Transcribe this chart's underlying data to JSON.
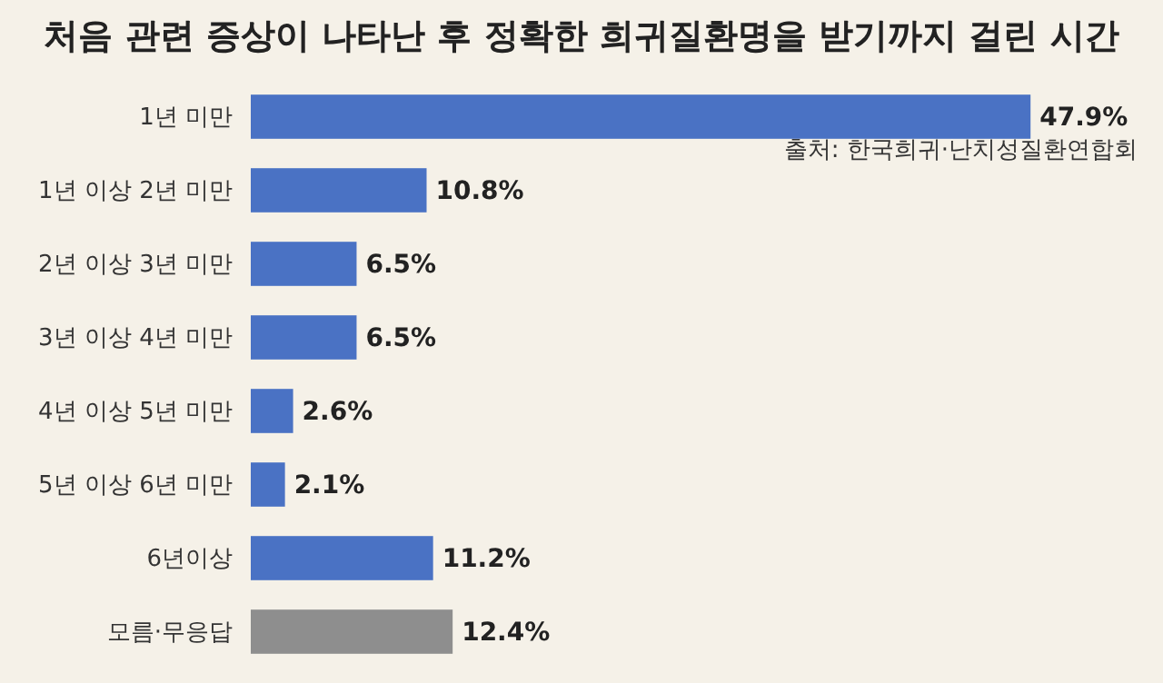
{
  "chart_data": {
    "type": "bar",
    "orientation": "horizontal",
    "title": "처음 관련 증상이 나타난 후 정확한 희귀질환명을 받기까지 걸린 시간",
    "categories": [
      "1년 미만",
      "1년 이상 2년 미만",
      "2년 이상 3년 미만",
      "3년 이상 4년 미만",
      "4년 이상 5년 미만",
      "5년 이상 6년 미만",
      "6년이상",
      "모름·무응답"
    ],
    "values": [
      47.9,
      10.8,
      6.5,
      6.5,
      2.6,
      2.1,
      11.2,
      12.4
    ],
    "colors": [
      "#4a72c4",
      "#4a72c4",
      "#4a72c4",
      "#4a72c4",
      "#4a72c4",
      "#4a72c4",
      "#4a72c4",
      "#8e8e8e"
    ],
    "value_labels": [
      "47.9%",
      "10.8%",
      "6.5%",
      "6.5%",
      "2.6%",
      "2.1%",
      "11.2%",
      "12.4%"
    ],
    "xlim": [
      0,
      48
    ],
    "tick_labels": "y",
    "annotations": [
      "출처: 한국희귀·난치성질환연합회"
    ]
  }
}
